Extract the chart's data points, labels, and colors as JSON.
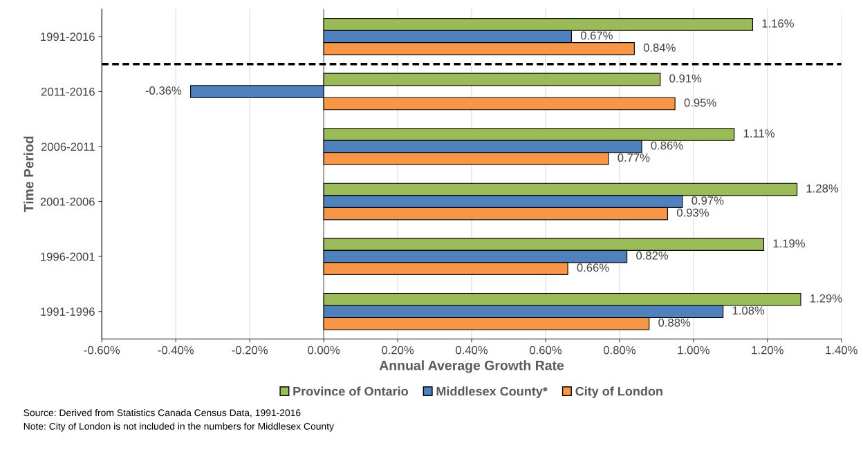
{
  "chart_data": {
    "type": "bar",
    "orientation": "horizontal",
    "categories": [
      "1991-2016",
      "2011-2016",
      "2006-2011",
      "2001-2006",
      "1996-2001",
      "1991-1996"
    ],
    "series": [
      {
        "name": "Province of Ontario",
        "color": "#9bbb59",
        "values": [
          1.16,
          0.91,
          1.11,
          1.28,
          1.19,
          1.29
        ],
        "value_labels": [
          "1.16%",
          "0.91%",
          "1.11%",
          "1.28%",
          "1.19%",
          "1.29%"
        ]
      },
      {
        "name": "Middlesex County*",
        "color": "#4f81bd",
        "values": [
          0.67,
          -0.36,
          0.86,
          0.97,
          0.82,
          1.08
        ],
        "value_labels": [
          "0.67%",
          "-0.36%",
          "0.86%",
          "0.97%",
          "0.82%",
          "1.08%"
        ]
      },
      {
        "name": "City of London",
        "color": "#f79646",
        "values": [
          0.84,
          0.95,
          0.77,
          0.93,
          0.66,
          0.88
        ],
        "value_labels": [
          "0.84%",
          "0.95%",
          "0.77%",
          "0.93%",
          "0.66%",
          "0.88%"
        ]
      }
    ],
    "xlabel": "Annual Average Growth Rate",
    "ylabel": "Time Period",
    "xlim": [
      -0.6,
      1.4
    ],
    "xticks": [
      {
        "value": -0.6,
        "label": "-0.60%"
      },
      {
        "value": -0.4,
        "label": "-0.40%"
      },
      {
        "value": -0.2,
        "label": "-0.20%"
      },
      {
        "value": 0,
        "label": "0.00%"
      },
      {
        "value": 0.2,
        "label": "0.20%"
      },
      {
        "value": 0.4,
        "label": "0.40%"
      },
      {
        "value": 0.6,
        "label": "0.60%"
      },
      {
        "value": 0.8,
        "label": "0.80%"
      },
      {
        "value": 1.0,
        "label": "1.00%"
      },
      {
        "value": 1.2,
        "label": "1.20%"
      },
      {
        "value": 1.4,
        "label": "1.40%"
      }
    ],
    "grid": "x",
    "legend": "bottom",
    "annotations": [
      "Source: Derived from Statistics Canada Census Data, 1991-2016",
      "Note: City of London is not included in the numbers for Middlesex County"
    ]
  }
}
